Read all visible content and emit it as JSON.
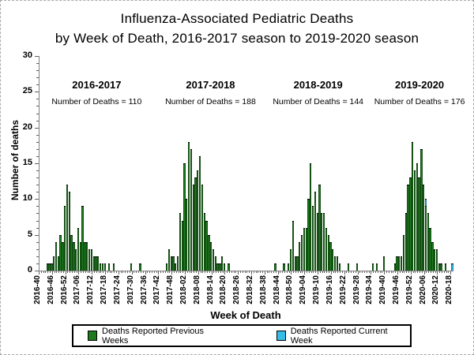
{
  "figure": {
    "title_line1": "Influenza-Associated Pediatric Deaths",
    "title_line2": "by Week of Death, 2016-2017 season to 2019-2020 season"
  },
  "axes": {
    "y_label": "Number of deaths",
    "x_label": "Week of Death"
  },
  "seasons": [
    {
      "label": "2016-2017",
      "count_text": "Number of Deaths = 110"
    },
    {
      "label": "2017-2018",
      "count_text": "Number of Deaths = 188"
    },
    {
      "label": "2018-2019",
      "count_text": "Number of Deaths = 144"
    },
    {
      "label": "2019-2020",
      "count_text": "Number of Deaths = 176"
    }
  ],
  "legend": [
    {
      "label": "Deaths Reported Previous Weeks",
      "color": "#1e7a1e"
    },
    {
      "label": "Deaths Reported Current Week",
      "color": "#35bde8"
    }
  ],
  "chart_data": {
    "type": "bar",
    "stacked": true,
    "title": "Influenza-Associated Pediatric Deaths by Week of Death, 2016-2017 season to 2019-2020 season",
    "xlabel": "Week of Death",
    "ylabel": "Number of deaths",
    "ylim": [
      0,
      30
    ],
    "y_ticks": [
      0,
      5,
      10,
      15,
      20,
      25,
      30
    ],
    "grid": false,
    "legend_position": "bottom",
    "x_first_week": "2016-40",
    "x_last_week": "2020-18",
    "x_tick_interval_weeks": 6,
    "x_tick_labels": [
      "2016-40",
      "2016-46",
      "2016-52",
      "2017-06",
      "2017-12",
      "2017-18",
      "2017-24",
      "2017-30",
      "2017-36",
      "2017-42",
      "2017-48",
      "2018-02",
      "2018-08",
      "2018-14",
      "2018-20",
      "2018-26",
      "2018-32",
      "2018-38",
      "2018-44",
      "2018-50",
      "2019-04",
      "2019-10",
      "2019-16",
      "2019-22",
      "2019-28",
      "2019-34",
      "2019-40",
      "2019-46",
      "2019-52",
      "2020-06",
      "2020-12",
      "2020-18"
    ],
    "season_totals": {
      "2016-2017": 110,
      "2017-2018": 188,
      "2018-2019": 144,
      "2019-2020": 176
    },
    "series": [
      {
        "name": "Deaths Reported Previous Weeks",
        "color": "#1e7a1e",
        "points": [
          [
            "2016-43",
            1
          ],
          [
            "2016-44",
            1
          ],
          [
            "2016-45",
            1
          ],
          [
            "2016-46",
            2
          ],
          [
            "2016-47",
            4
          ],
          [
            "2016-48",
            2
          ],
          [
            "2016-49",
            5
          ],
          [
            "2016-50",
            4
          ],
          [
            "2016-51",
            9
          ],
          [
            "2016-52",
            12
          ],
          [
            "2017-01",
            11
          ],
          [
            "2017-02",
            5
          ],
          [
            "2017-03",
            4
          ],
          [
            "2017-04",
            3
          ],
          [
            "2017-05",
            6
          ],
          [
            "2017-06",
            4
          ],
          [
            "2017-07",
            9
          ],
          [
            "2017-08",
            4
          ],
          [
            "2017-09",
            4
          ],
          [
            "2017-10",
            3
          ],
          [
            "2017-11",
            3
          ],
          [
            "2017-12",
            2
          ],
          [
            "2017-13",
            2
          ],
          [
            "2017-14",
            2
          ],
          [
            "2017-15",
            1
          ],
          [
            "2017-16",
            1
          ],
          [
            "2017-17",
            1
          ],
          [
            "2017-19",
            1
          ],
          [
            "2017-21",
            1
          ],
          [
            "2017-29",
            1
          ],
          [
            "2017-33",
            1
          ],
          [
            "2017-45",
            1
          ],
          [
            "2017-46",
            3
          ],
          [
            "2017-47",
            2
          ],
          [
            "2017-48",
            2
          ],
          [
            "2017-49",
            1
          ],
          [
            "2017-50",
            2
          ],
          [
            "2017-51",
            8
          ],
          [
            "2017-52",
            7
          ],
          [
            "2018-01",
            15
          ],
          [
            "2018-02",
            10
          ],
          [
            "2018-03",
            18
          ],
          [
            "2018-04",
            17
          ],
          [
            "2018-05",
            12
          ],
          [
            "2018-06",
            13
          ],
          [
            "2018-07",
            14
          ],
          [
            "2018-08",
            16
          ],
          [
            "2018-09",
            12
          ],
          [
            "2018-10",
            8
          ],
          [
            "2018-11",
            7
          ],
          [
            "2018-12",
            5
          ],
          [
            "2018-13",
            4
          ],
          [
            "2018-14",
            3
          ],
          [
            "2018-15",
            2
          ],
          [
            "2018-16",
            1
          ],
          [
            "2018-17",
            1
          ],
          [
            "2018-18",
            2
          ],
          [
            "2018-19",
            1
          ],
          [
            "2018-21",
            1
          ],
          [
            "2018-42",
            1
          ],
          [
            "2018-46",
            1
          ],
          [
            "2018-48",
            1
          ],
          [
            "2018-49",
            3
          ],
          [
            "2018-50",
            7
          ],
          [
            "2018-51",
            2
          ],
          [
            "2018-52",
            2
          ],
          [
            "2019-01",
            4
          ],
          [
            "2019-02",
            5
          ],
          [
            "2019-03",
            6
          ],
          [
            "2019-04",
            6
          ],
          [
            "2019-05",
            10
          ],
          [
            "2019-06",
            15
          ],
          [
            "2019-07",
            9
          ],
          [
            "2019-08",
            11
          ],
          [
            "2019-09",
            8
          ],
          [
            "2019-10",
            12
          ],
          [
            "2019-11",
            8
          ],
          [
            "2019-12",
            8
          ],
          [
            "2019-13",
            6
          ],
          [
            "2019-14",
            5
          ],
          [
            "2019-15",
            4
          ],
          [
            "2019-16",
            3
          ],
          [
            "2019-17",
            2
          ],
          [
            "2019-18",
            2
          ],
          [
            "2019-19",
            1
          ],
          [
            "2019-23",
            1
          ],
          [
            "2019-27",
            1
          ],
          [
            "2019-34",
            1
          ],
          [
            "2019-36",
            1
          ],
          [
            "2019-39",
            2
          ],
          [
            "2019-44",
            1
          ],
          [
            "2019-45",
            2
          ],
          [
            "2019-46",
            2
          ],
          [
            "2019-47",
            2
          ],
          [
            "2019-48",
            5
          ],
          [
            "2019-49",
            8
          ],
          [
            "2019-50",
            12
          ],
          [
            "2019-51",
            13
          ],
          [
            "2019-52",
            18
          ],
          [
            "2020-01",
            14
          ],
          [
            "2020-02",
            15
          ],
          [
            "2020-03",
            13
          ],
          [
            "2020-04",
            17
          ],
          [
            "2020-05",
            12
          ],
          [
            "2020-06",
            9
          ],
          [
            "2020-07",
            8
          ],
          [
            "2020-08",
            6
          ],
          [
            "2020-09",
            4
          ],
          [
            "2020-10",
            3
          ],
          [
            "2020-11",
            3
          ],
          [
            "2020-12",
            1
          ],
          [
            "2020-13",
            1
          ],
          [
            "2020-15",
            1
          ]
        ]
      },
      {
        "name": "Deaths Reported Current Week",
        "color": "#35bde8",
        "points": [
          [
            "2020-06",
            1
          ],
          [
            "2020-18",
            1
          ]
        ]
      }
    ]
  }
}
